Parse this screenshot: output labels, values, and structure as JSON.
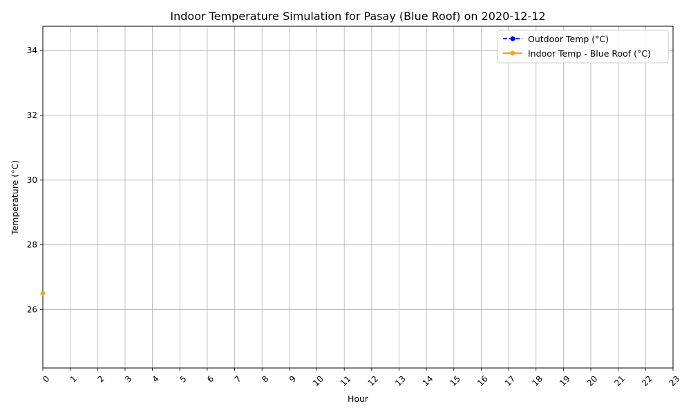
{
  "chart_data": {
    "type": "line",
    "title": "Indoor Temperature Simulation for Pasay (Blue Roof) on 2020-12-12",
    "xlabel": "Hour",
    "ylabel": "Temperature (°C)",
    "x_ticks": [
      "0",
      "1",
      "2",
      "3",
      "4",
      "5",
      "6",
      "7",
      "8",
      "9",
      "10",
      "11",
      "12",
      "13",
      "14",
      "15",
      "16",
      "17",
      "18",
      "19",
      "20",
      "21",
      "22",
      "23"
    ],
    "xlim": [
      0,
      23
    ],
    "y_ticks": [
      "26",
      "28",
      "30",
      "32",
      "34"
    ],
    "ylim": [
      24.2,
      34.75
    ],
    "grid": true,
    "legend_position": "top-right",
    "series": [
      {
        "name": "Outdoor Temp (°C)",
        "color": "#0000ff",
        "line_style": "dashed",
        "marker": "circle",
        "points": []
      },
      {
        "name": "Indoor Temp - Blue Roof (°C)",
        "color": "#f5a623",
        "line_style": "solid",
        "marker": "circle",
        "points": [
          {
            "x": 0,
            "y": 26.5
          }
        ]
      }
    ]
  }
}
